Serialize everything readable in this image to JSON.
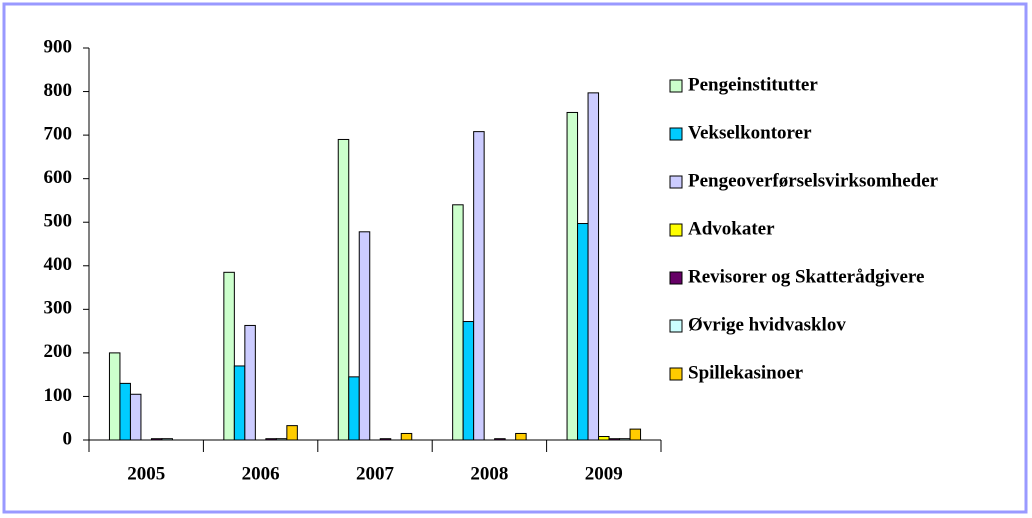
{
  "chart_data": {
    "type": "bar",
    "categories": [
      "2005",
      "2006",
      "2007",
      "2008",
      "2009"
    ],
    "series": [
      {
        "name": "Pengeinstitutter",
        "color": "#ccffcc",
        "values": [
          200,
          385,
          690,
          540,
          752
        ]
      },
      {
        "name": "Vekselkontorer",
        "color": "#00ccff",
        "values": [
          130,
          170,
          145,
          272,
          497
        ]
      },
      {
        "name": "Pengeoverførselsvirksomheder",
        "color": "#ccccff",
        "values": [
          105,
          263,
          478,
          708,
          797
        ]
      },
      {
        "name": "Advokater",
        "color": "#ffff00",
        "values": [
          0,
          0,
          0,
          0,
          8
        ]
      },
      {
        "name": "Revisorer og Skatterådgivere",
        "color": "#660066",
        "values": [
          3,
          3,
          3,
          3,
          3
        ]
      },
      {
        "name": "Øvrige hvidvasklov",
        "color": "#ccffff",
        "values": [
          3,
          3,
          0,
          0,
          3
        ]
      },
      {
        "name": "Spillekasinoer",
        "color": "#ffcc00",
        "values": [
          0,
          33,
          15,
          15,
          25
        ]
      }
    ],
    "ylim": [
      0,
      900
    ],
    "yticks": [
      0,
      100,
      200,
      300,
      400,
      500,
      600,
      700,
      800,
      900
    ],
    "legend": "right"
  }
}
